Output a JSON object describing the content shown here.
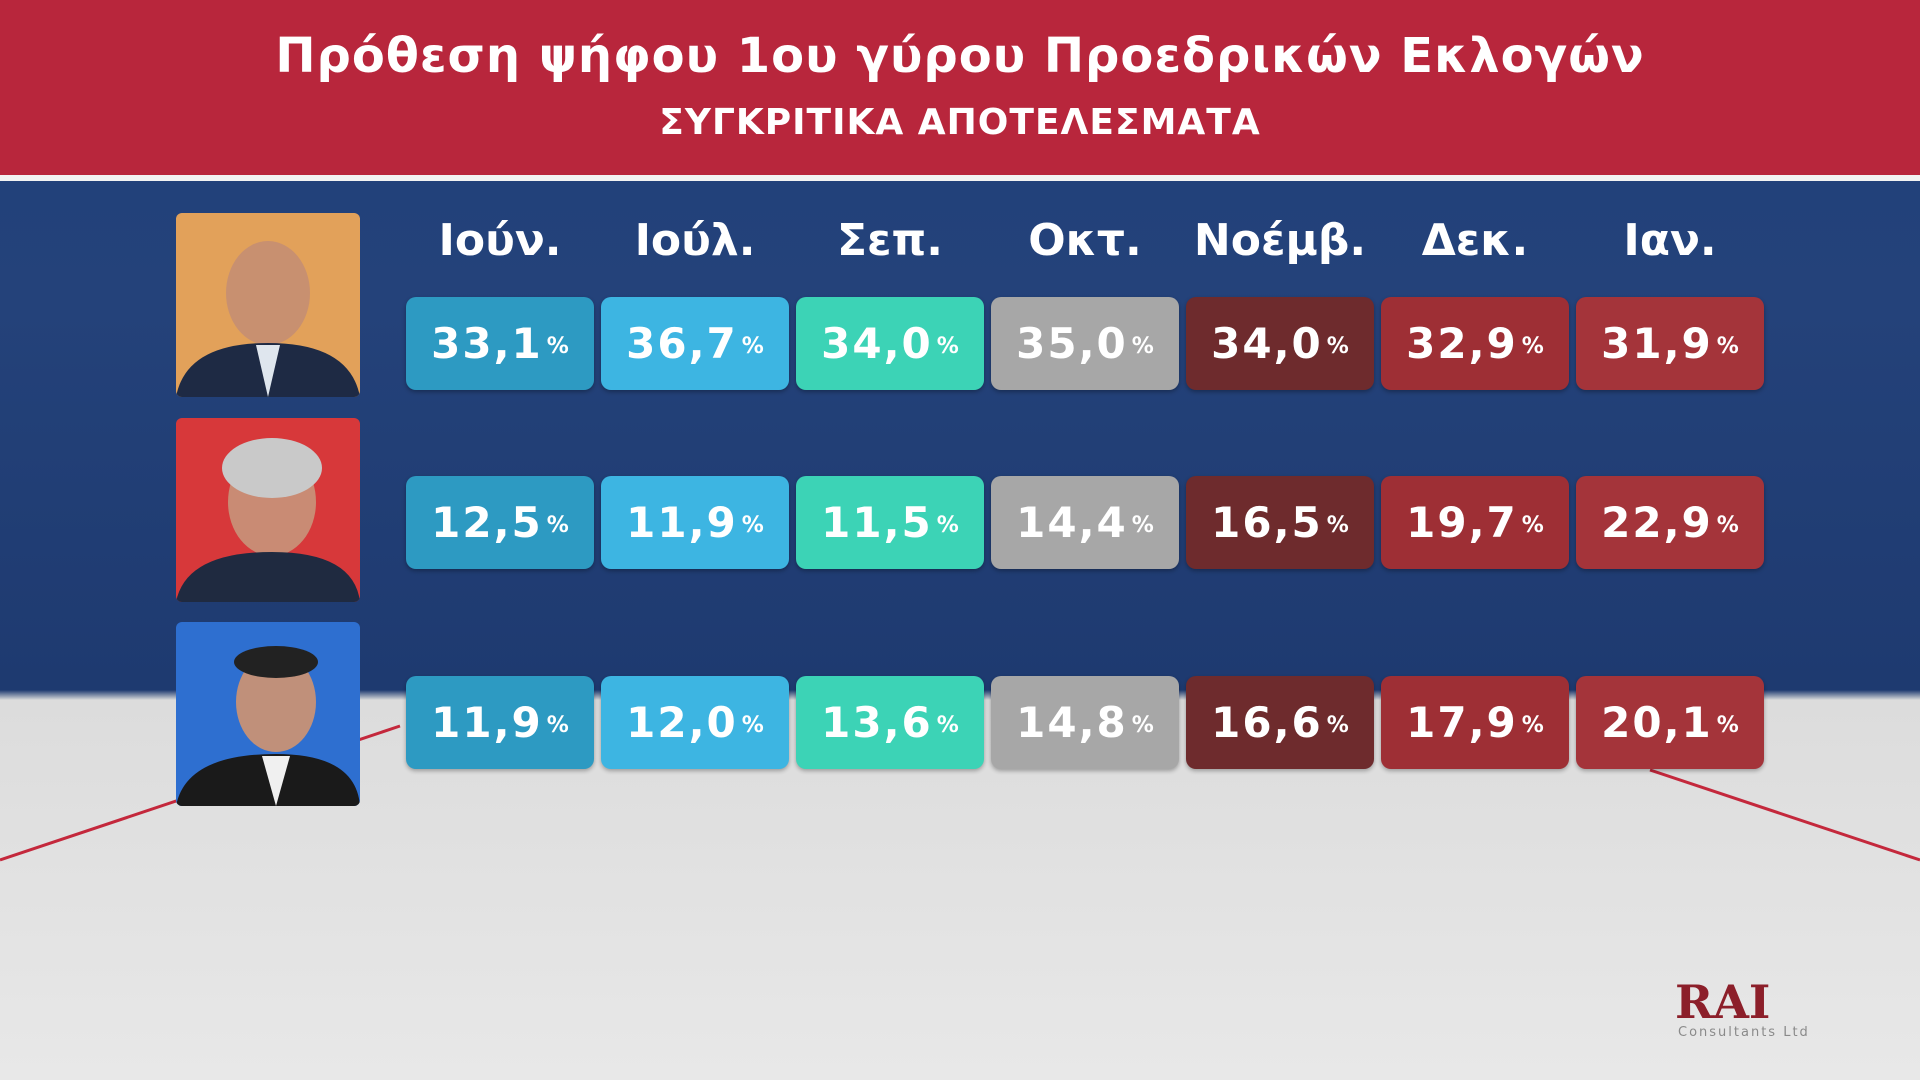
{
  "header": {
    "title": "Πρόθεση ψήφου 1ου γύρου Προεδρικών Εκλογών",
    "subtitle": "ΣΥΓΚΡΙΤΙΚΑ ΑΠΟΤΕΛΕΣΜΑΤΑ"
  },
  "table": {
    "columns": [
      "Ιούν.",
      "Ιούλ.",
      "Σεπ.",
      "Οκτ.",
      "Νοέμβ.",
      "Δεκ.",
      "Ιαν."
    ],
    "rows": [
      [
        {
          "value": "33,1",
          "unit": "%"
        },
        {
          "value": "36,7",
          "unit": "%"
        },
        {
          "value": "34,0",
          "unit": "%"
        },
        {
          "value": "35,0",
          "unit": "%"
        },
        {
          "value": "34,0",
          "unit": "%"
        },
        {
          "value": "32,9",
          "unit": "%"
        },
        {
          "value": "31,9",
          "unit": "%"
        }
      ],
      [
        {
          "value": "12,5",
          "unit": "%"
        },
        {
          "value": "11,9",
          "unit": "%"
        },
        {
          "value": "11,5",
          "unit": "%"
        },
        {
          "value": "14,4",
          "unit": "%"
        },
        {
          "value": "16,5",
          "unit": "%"
        },
        {
          "value": "19,7",
          "unit": "%"
        },
        {
          "value": "22,9",
          "unit": "%"
        }
      ],
      [
        {
          "value": "11,9",
          "unit": "%"
        },
        {
          "value": "12,0",
          "unit": "%"
        },
        {
          "value": "13,6",
          "unit": "%"
        },
        {
          "value": "14,8",
          "unit": "%"
        },
        {
          "value": "16,6",
          "unit": "%"
        },
        {
          "value": "17,9",
          "unit": "%"
        },
        {
          "value": "20,1",
          "unit": "%"
        }
      ]
    ]
  },
  "logo": {
    "name": "RAI",
    "tagline": "Consultants Ltd"
  }
}
